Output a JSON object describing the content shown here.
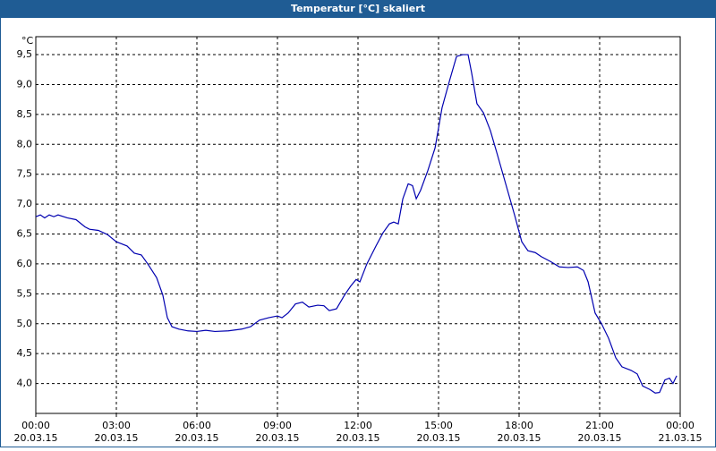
{
  "chart_data": {
    "type": "line",
    "title": "Temperatur [°C] skaliert",
    "y_unit": "°C",
    "x": [
      0,
      0.17,
      0.33,
      0.5,
      0.67,
      0.83,
      1.17,
      1.5,
      1.83,
      2,
      2.33,
      2.67,
      3,
      3.17,
      3.4,
      3.67,
      3.93,
      4.17,
      4.5,
      4.73,
      4.9,
      5.07,
      5.33,
      5.67,
      6,
      6.33,
      6.67,
      7.17,
      7.67,
      8,
      8.33,
      8.67,
      9,
      9.17,
      9.4,
      9.67,
      9.93,
      10.17,
      10.5,
      10.73,
      10.93,
      11.2,
      11.5,
      11.73,
      11.93,
      12.07,
      12.33,
      12.67,
      12.93,
      13.17,
      13.33,
      13.5,
      13.67,
      13.87,
      14.03,
      14.17,
      14.33,
      14.6,
      14.87,
      15.13,
      15.4,
      15.67,
      15.9,
      16.1,
      16.23,
      16.43,
      16.67,
      16.93,
      17.17,
      17.5,
      17.83,
      18.1,
      18.33,
      18.6,
      18.83,
      19.17,
      19.5,
      19.83,
      20.17,
      20.4,
      20.57,
      20.83,
      21.07,
      21.33,
      21.6,
      21.83,
      22.17,
      22.4,
      22.6,
      22.87,
      23.07,
      23.23,
      23.43,
      23.6,
      23.73,
      23.87
    ],
    "series": [
      {
        "name": "Temperatur",
        "color": "#0000b0",
        "values": [
          6.79,
          6.82,
          6.77,
          6.82,
          6.79,
          6.82,
          6.77,
          6.74,
          6.62,
          6.58,
          6.56,
          6.49,
          6.37,
          6.34,
          6.3,
          6.18,
          6.15,
          6.0,
          5.77,
          5.48,
          5.1,
          4.95,
          4.91,
          4.88,
          4.87,
          4.89,
          4.87,
          4.88,
          4.91,
          4.95,
          5.06,
          5.1,
          5.13,
          5.1,
          5.18,
          5.33,
          5.36,
          5.28,
          5.31,
          5.3,
          5.22,
          5.25,
          5.48,
          5.63,
          5.74,
          5.7,
          6.0,
          6.3,
          6.52,
          6.67,
          6.7,
          6.67,
          7.09,
          7.34,
          7.31,
          7.09,
          7.23,
          7.56,
          7.94,
          8.61,
          9.05,
          9.47,
          9.5,
          9.5,
          9.2,
          8.68,
          8.53,
          8.23,
          7.86,
          7.34,
          6.82,
          6.37,
          6.22,
          6.19,
          6.12,
          6.04,
          5.95,
          5.94,
          5.95,
          5.89,
          5.7,
          5.18,
          5.0,
          4.76,
          4.43,
          4.28,
          4.22,
          4.16,
          3.96,
          3.9,
          3.84,
          3.85,
          4.06,
          4.09,
          4.0,
          4.13
        ]
      }
    ],
    "xlim": [
      0,
      24
    ],
    "xticks": [
      {
        "value": 0,
        "label": "00:00"
      },
      {
        "value": 3,
        "label": "03:00"
      },
      {
        "value": 6,
        "label": "06:00"
      },
      {
        "value": 9,
        "label": "09:00"
      },
      {
        "value": 12,
        "label": "12:00"
      },
      {
        "value": 15,
        "label": "15:00"
      },
      {
        "value": 18,
        "label": "18:00"
      },
      {
        "value": 21,
        "label": "21:00"
      },
      {
        "value": 24,
        "label": "00:00"
      }
    ],
    "xtick_dates": [
      "20.03.15",
      "20.03.15",
      "20.03.15",
      "20.03.15",
      "20.03.15",
      "20.03.15",
      "20.03.15",
      "20.03.15",
      "21.03.15"
    ],
    "ylim": [
      3.5,
      9.8
    ],
    "yticks": [
      {
        "value": 4,
        "label": "4,0"
      },
      {
        "value": 4.5,
        "label": "4,5"
      },
      {
        "value": 5,
        "label": "5,0"
      },
      {
        "value": 5.5,
        "label": "5,5"
      },
      {
        "value": 6,
        "label": "6,0"
      },
      {
        "value": 6.5,
        "label": "6,5"
      },
      {
        "value": 7,
        "label": "7,0"
      },
      {
        "value": 7.5,
        "label": "7,5"
      },
      {
        "value": 8,
        "label": "8,0"
      },
      {
        "value": 8.5,
        "label": "8,5"
      },
      {
        "value": 9,
        "label": "9,0"
      },
      {
        "value": 9.5,
        "label": "9,5"
      }
    ],
    "grid": true
  }
}
